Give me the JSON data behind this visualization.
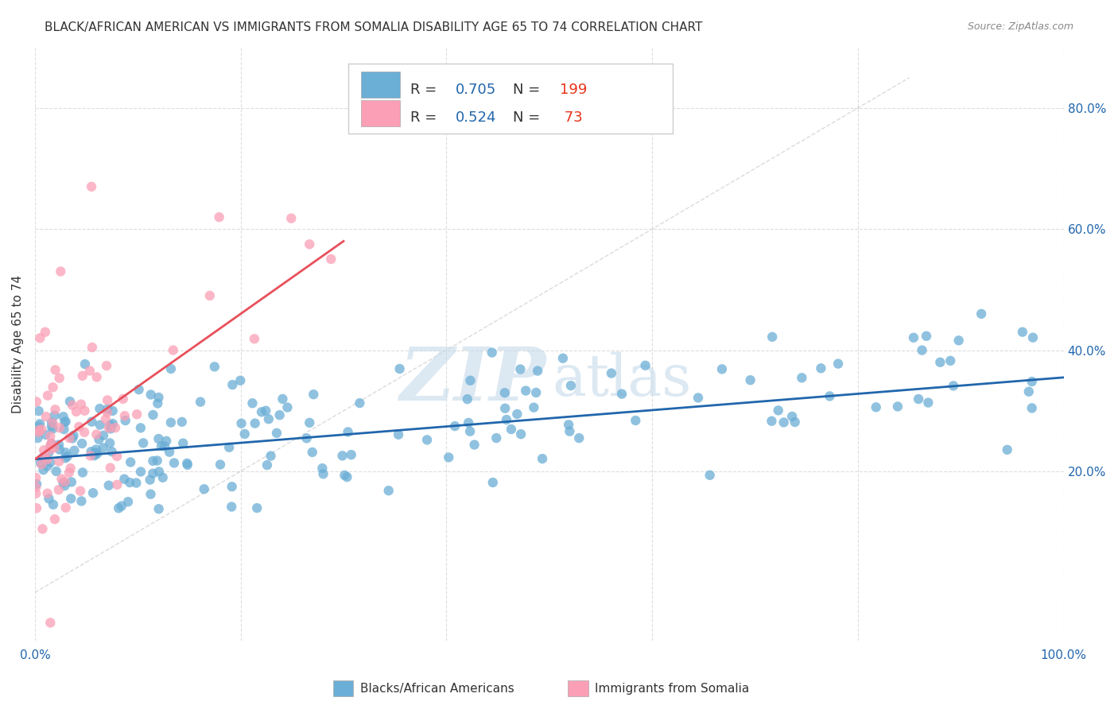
{
  "title": "BLACK/AFRICAN AMERICAN VS IMMIGRANTS FROM SOMALIA DISABILITY AGE 65 TO 74 CORRELATION CHART",
  "source": "Source: ZipAtlas.com",
  "ylabel": "Disability Age 65 to 74",
  "right_yticks": [
    "20.0%",
    "40.0%",
    "60.0%",
    "80.0%"
  ],
  "right_ytick_vals": [
    0.2,
    0.4,
    0.6,
    0.8
  ],
  "legend_blue_R": "0.705",
  "legend_blue_N": "199",
  "legend_pink_R": "0.524",
  "legend_pink_N": "73",
  "legend_label_blue": "Blacks/African Americans",
  "legend_label_pink": "Immigrants from Somalia",
  "blue_color": "#6baed6",
  "pink_color": "#fa9fb5",
  "blue_line_color": "#2166ac",
  "pink_line_color": "#e8505b",
  "blue_scatter_alpha": 0.75,
  "pink_scatter_alpha": 0.75,
  "background_color": "#ffffff",
  "grid_color": "#dddddd",
  "axis_xlim": [
    0.0,
    1.0
  ],
  "axis_ylim": [
    -0.08,
    0.9
  ]
}
